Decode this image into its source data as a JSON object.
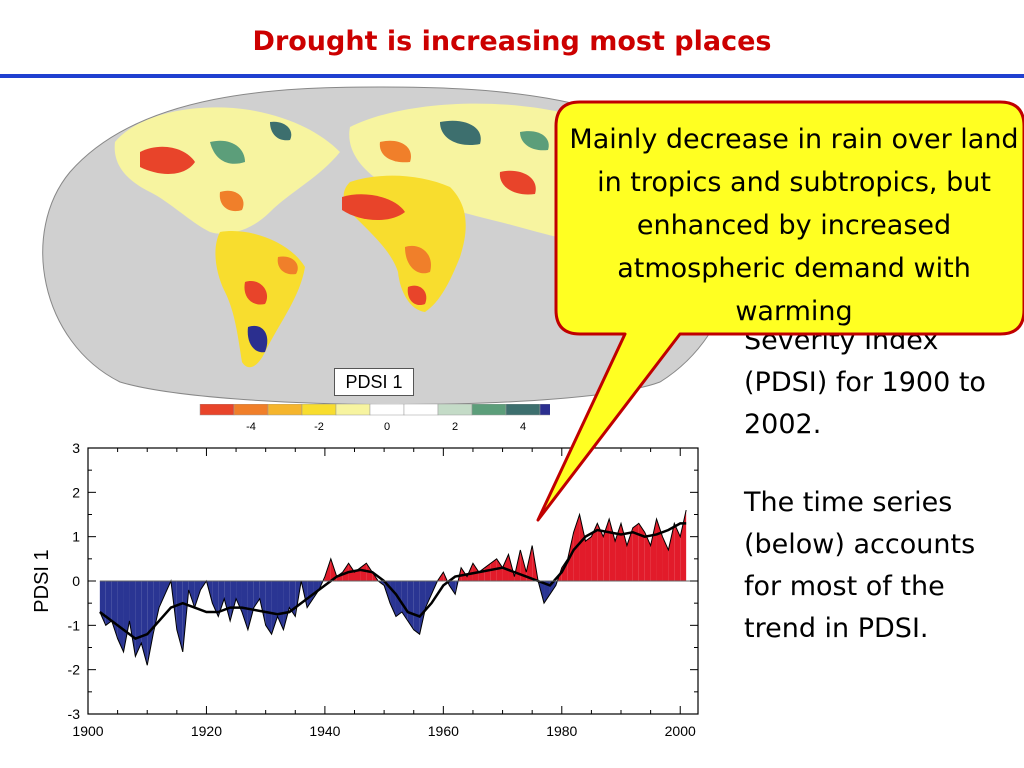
{
  "slide": {
    "title": "Drought is increasing most places",
    "callout": "Mainly decrease in rain over land in tropics and subtropics, but enhanced by increased atmospheric demand with warming",
    "side_text_1": "Severity Index (PDSI) for 1900 to 2002.",
    "side_text_2": "The time series (below) accounts for most of the trend in PDSI."
  },
  "map": {
    "label": "PDSI 1",
    "colorbar": {
      "colors": [
        "#e8442a",
        "#f07f2a",
        "#f5b52d",
        "#f8dd2e",
        "#f7f4a0",
        "#ffffff",
        "#ffffff",
        "#c4dbc7",
        "#5c9e7a",
        "#3d6f6e",
        "#2b2f8f"
      ],
      "ticks": [
        "-4",
        "-2",
        "0",
        "2",
        "4"
      ]
    }
  },
  "chart_data": {
    "type": "area",
    "title": "",
    "xlabel": "",
    "ylabel": "PDSI 1",
    "xlim": [
      1900,
      2003
    ],
    "ylim": [
      -3,
      3
    ],
    "xticks": [
      "1900",
      "1920",
      "1940",
      "1960",
      "1980",
      "2000"
    ],
    "yticks": [
      "3",
      "2",
      "1",
      "0",
      "-1",
      "-2",
      "-3"
    ],
    "grid": false,
    "colors": {
      "positive": "#e21b2a",
      "negative": "#2a3593",
      "smooth": "#000000"
    },
    "series": [
      {
        "type": "annual",
        "x": [
          1902,
          1903,
          1904,
          1905,
          1906,
          1907,
          1908,
          1909,
          1910,
          1911,
          1912,
          1913,
          1914,
          1915,
          1916,
          1917,
          1918,
          1919,
          1920,
          1921,
          1922,
          1923,
          1924,
          1925,
          1926,
          1927,
          1928,
          1929,
          1930,
          1931,
          1932,
          1933,
          1934,
          1935,
          1936,
          1937,
          1938,
          1939,
          1940,
          1941,
          1942,
          1943,
          1944,
          1945,
          1946,
          1947,
          1948,
          1949,
          1950,
          1951,
          1952,
          1953,
          1954,
          1955,
          1956,
          1957,
          1958,
          1959,
          1960,
          1961,
          1962,
          1963,
          1964,
          1965,
          1966,
          1967,
          1968,
          1969,
          1970,
          1971,
          1972,
          1973,
          1974,
          1975,
          1976,
          1977,
          1978,
          1979,
          1980,
          1981,
          1982,
          1983,
          1984,
          1985,
          1986,
          1987,
          1988,
          1989,
          1990,
          1991,
          1992,
          1993,
          1994,
          1995,
          1996,
          1997,
          1998,
          1999,
          2000,
          2001
        ],
        "values": [
          -0.7,
          -1.0,
          -0.9,
          -1.3,
          -1.6,
          -0.9,
          -1.7,
          -1.4,
          -1.9,
          -1.2,
          -0.6,
          -0.3,
          0.0,
          -1.1,
          -1.6,
          -0.2,
          -0.6,
          -0.2,
          0.0,
          -0.5,
          -0.8,
          -0.4,
          -0.9,
          -0.4,
          -0.7,
          -1.1,
          -0.6,
          -0.4,
          -1.0,
          -1.2,
          -0.8,
          -1.1,
          -0.6,
          -0.8,
          0.0,
          -0.6,
          -0.4,
          -0.2,
          0.1,
          0.5,
          0.1,
          0.2,
          0.4,
          0.2,
          0.3,
          0.4,
          0.2,
          0.0,
          -0.1,
          -0.5,
          -0.8,
          -0.7,
          -0.9,
          -1.1,
          -1.2,
          -0.6,
          -0.3,
          0.0,
          0.2,
          -0.1,
          -0.3,
          0.3,
          0.1,
          0.4,
          0.2,
          0.3,
          0.4,
          0.5,
          0.3,
          0.6,
          0.1,
          0.7,
          0.2,
          0.8,
          0.0,
          -0.5,
          -0.3,
          -0.1,
          0.3,
          0.5,
          1.1,
          1.5,
          0.9,
          1.0,
          1.3,
          1.0,
          1.4,
          0.9,
          1.3,
          0.8,
          1.2,
          1.3,
          1.1,
          0.8,
          1.4,
          1.0,
          0.7,
          1.3,
          1.0,
          1.6
        ]
      },
      {
        "type": "smoothed",
        "x": [
          1902,
          1904,
          1906,
          1908,
          1910,
          1912,
          1914,
          1916,
          1918,
          1920,
          1922,
          1924,
          1926,
          1928,
          1930,
          1932,
          1934,
          1936,
          1938,
          1940,
          1942,
          1944,
          1946,
          1948,
          1950,
          1952,
          1954,
          1956,
          1958,
          1960,
          1962,
          1964,
          1966,
          1968,
          1970,
          1972,
          1974,
          1976,
          1978,
          1980,
          1982,
          1984,
          1986,
          1988,
          1990,
          1992,
          1994,
          1996,
          1998,
          2000,
          2001
        ],
        "values": [
          -0.7,
          -0.9,
          -1.1,
          -1.3,
          -1.2,
          -0.9,
          -0.6,
          -0.5,
          -0.6,
          -0.7,
          -0.7,
          -0.6,
          -0.6,
          -0.65,
          -0.7,
          -0.75,
          -0.7,
          -0.5,
          -0.3,
          -0.1,
          0.1,
          0.2,
          0.25,
          0.2,
          0.0,
          -0.3,
          -0.7,
          -0.8,
          -0.5,
          -0.1,
          0.1,
          0.15,
          0.2,
          0.25,
          0.3,
          0.2,
          0.1,
          0.0,
          -0.1,
          0.2,
          0.7,
          1.0,
          1.15,
          1.1,
          1.05,
          1.1,
          1.0,
          1.05,
          1.15,
          1.3,
          1.3
        ]
      }
    ]
  }
}
